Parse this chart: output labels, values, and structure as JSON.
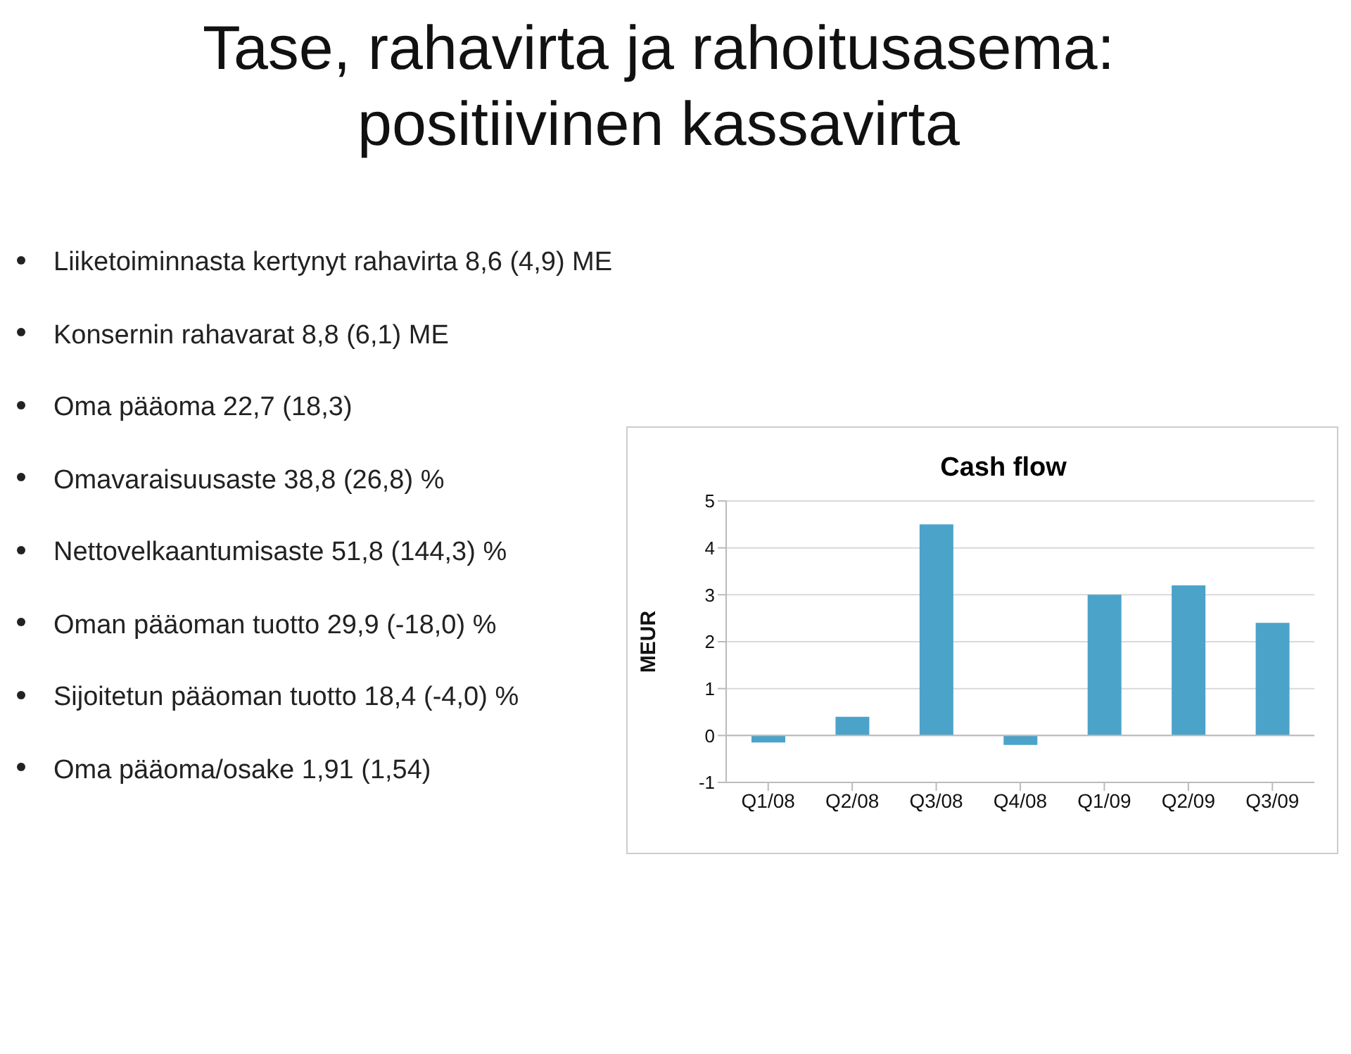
{
  "chart_data": {
    "type": "bar",
    "title": "Tase, rahavirta ja rahoitusasema: positiivinen kassavirta",
    "subtitle": "Cash flow",
    "ylabel": "MEUR",
    "annotations": [
      "Liiketoiminnasta kertynyt rahavirta 8,6 (4,9) ME",
      "Konsernin rahavarat 8,8 (6,1) ME",
      "Oma pääoma 22,7 (18,3)",
      "Omavaraisuusaste 38,8 (26,8) %",
      "Nettovelkaantumisaste 51,8 (144,3) %",
      "Oman pääoman tuotto 29,9 (-18,0) %",
      "Sijoitetun pääoman tuotto 18,4 (-4,0) %",
      "Oma pääoma/osake 1,91 (1,54)"
    ],
    "categories": [
      "Q1/08",
      "Q2/08",
      "Q3/08",
      "Q4/08",
      "Q1/09",
      "Q2/09",
      "Q3/09"
    ],
    "values": [
      -0.15,
      0.4,
      4.5,
      -0.2,
      3.0,
      3.2,
      2.4
    ],
    "color": "#4ba3c9",
    "ylim": [
      -1,
      5
    ],
    "yticks": [
      -1,
      0,
      1,
      2,
      3,
      4,
      5
    ],
    "grid": "y"
  }
}
